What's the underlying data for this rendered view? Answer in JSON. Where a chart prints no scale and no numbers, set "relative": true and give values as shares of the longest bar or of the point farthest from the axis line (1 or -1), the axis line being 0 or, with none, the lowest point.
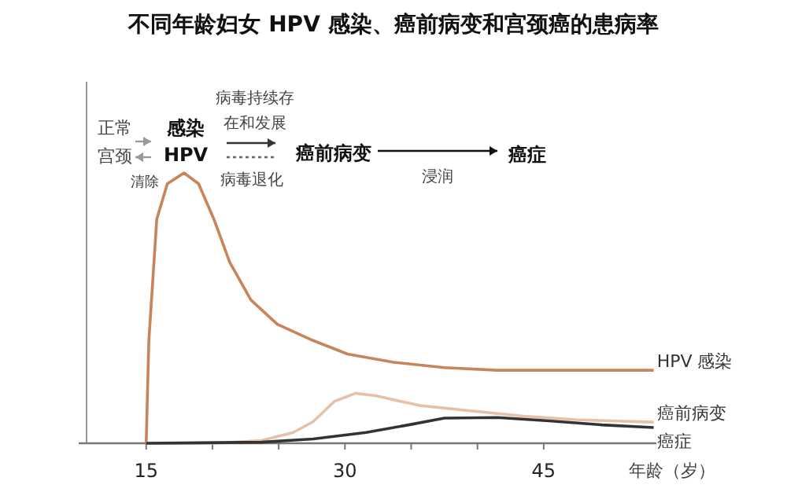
{
  "chart_data": {
    "type": "line",
    "relative": true,
    "title": "不同年龄妇女 HPV 感染、癌前病变和宫颈癌的患病率",
    "xlabel": "年龄（岁）",
    "xlim": [
      10.5,
      53.5
    ],
    "xticks": [
      15,
      {
        "value": 20,
        "label": null
      },
      {
        "value": 25,
        "label": null
      },
      30,
      {
        "value": 35,
        "label": null
      },
      {
        "value": 40,
        "label": null
      },
      45
    ],
    "annotations": [
      "正常",
      "宫颈",
      "清除",
      "感染",
      "HPV",
      "病毒持续存",
      "在和发展",
      "病毒退化",
      "癌前病变",
      "浸润",
      "癌症"
    ],
    "series": [
      {
        "name": "HPV 感染",
        "color": "#c8845a",
        "x": [
          15,
          15.2,
          15.8,
          16.6,
          17.85,
          18.95,
          20.1,
          21.3,
          22.9,
          24.9,
          27.6,
          30.2,
          33.6,
          37.5,
          41.5,
          47.4,
          53.3
        ],
        "values": [
          0,
          0.38,
          0.83,
          0.96,
          1,
          0.96,
          0.83,
          0.67,
          0.53,
          0.44,
          0.38,
          0.33,
          0.3,
          0.28,
          0.27,
          0.27,
          0.27
        ]
      },
      {
        "name": "癌前病变",
        "color": "#e8c0a8",
        "x": [
          15,
          20.1,
          23.7,
          26.1,
          27.6,
          29.2,
          30.8,
          32.4,
          35.6,
          39.5,
          43.5,
          47.4,
          53.3
        ],
        "values": [
          0,
          0,
          0.01,
          0.04,
          0.08,
          0.155,
          0.185,
          0.175,
          0.14,
          0.12,
          0.1,
          0.087,
          0.078
        ]
      },
      {
        "name": "癌症",
        "color": "#333333",
        "x": [
          15,
          23.7,
          27.6,
          31.6,
          34.8,
          37.5,
          41.5,
          45.4,
          49.4,
          53.3
        ],
        "values": [
          0,
          0.004,
          0.016,
          0.04,
          0.068,
          0.093,
          0.095,
          0.083,
          0.068,
          0.058
        ]
      }
    ]
  }
}
